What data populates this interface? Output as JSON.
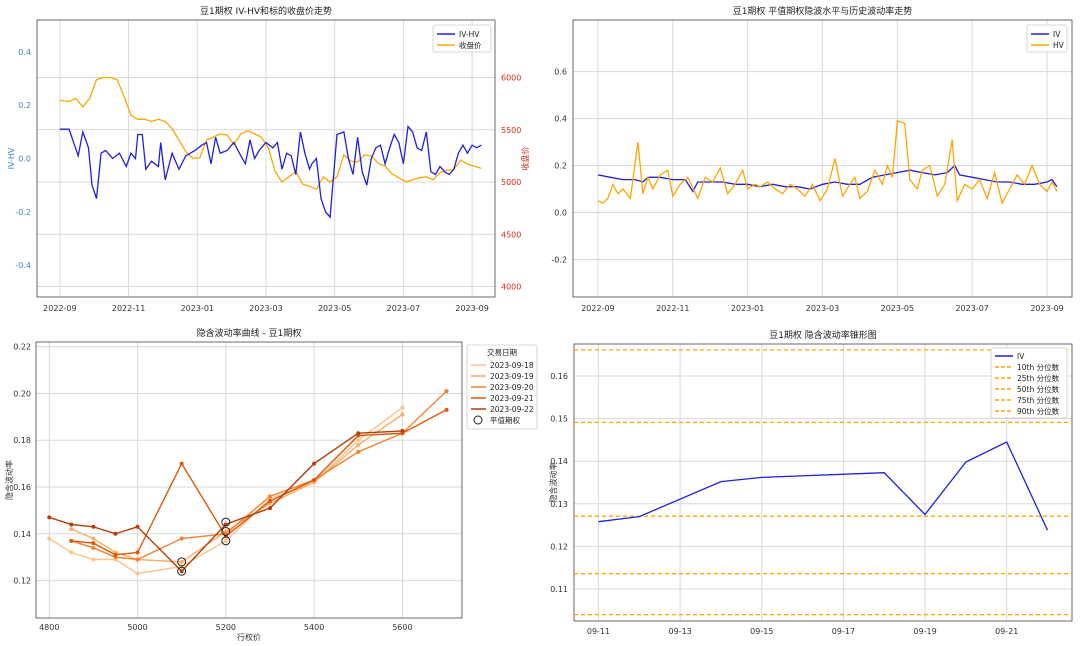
{
  "colors": {
    "blue": "#1f1fe0",
    "orange": "#ffa500",
    "axis_blue": "#3b86c6",
    "axis_red": "#e0291c",
    "smile": [
      "#fdc28a",
      "#fdab67",
      "#f87f2c",
      "#e0580a",
      "#b43f06"
    ]
  },
  "chart_data": [
    {
      "type": "line",
      "title": "豆1期权 IV-HV和标的收盘价走势",
      "xlabel": "",
      "ylabel": "IV-HV",
      "y2label": "收盘价",
      "xticks": [
        "2022-09",
        "2022-11",
        "2023-01",
        "2023-03",
        "2023-05",
        "2023-07",
        "2023-09"
      ],
      "xlim": [
        0,
        400
      ],
      "ylim": [
        -0.52,
        0.52
      ],
      "yticks": [
        "-0.4",
        "-0.2",
        "0.0",
        "0.2",
        "0.4"
      ],
      "y2lim": [
        3900,
        6550
      ],
      "y2ticks": [
        "4000",
        "4500",
        "5000",
        "5500",
        "6000"
      ],
      "legend": [
        "IV-HV",
        "收盘价"
      ],
      "series": [
        {
          "name": "IV-HV",
          "axis": "left",
          "x": [
            20,
            28,
            32,
            36,
            40,
            45,
            48,
            52,
            56,
            60,
            66,
            72,
            78,
            82,
            86,
            88,
            92,
            95,
            100,
            106,
            108,
            112,
            118,
            124,
            130,
            138,
            144,
            148,
            152,
            156,
            160,
            166,
            172,
            178,
            182,
            186,
            190,
            194,
            200,
            206,
            210,
            214,
            218,
            222,
            226,
            230,
            234,
            238,
            240,
            244,
            248,
            252,
            256,
            262,
            268,
            272,
            276,
            280,
            284,
            288,
            292,
            296,
            300,
            304,
            308,
            312,
            316,
            320,
            324,
            328,
            332,
            336,
            340,
            344,
            348,
            352,
            356,
            360,
            364,
            368,
            372,
            376,
            380,
            384,
            388
          ],
          "y": [
            0.11,
            0.11,
            0.06,
            0.01,
            0.1,
            0.04,
            -0.1,
            -0.15,
            0.02,
            0.03,
            0.0,
            0.02,
            -0.03,
            0.02,
            0.0,
            0.09,
            0.09,
            -0.04,
            -0.01,
            -0.03,
            0.06,
            -0.08,
            0.02,
            -0.04,
            0.01,
            0.03,
            0.05,
            0.06,
            -0.02,
            0.08,
            0.02,
            0.03,
            0.06,
            0.01,
            -0.02,
            0.07,
            0.0,
            0.03,
            0.06,
            0.04,
            0.06,
            -0.04,
            0.02,
            0.01,
            -0.06,
            0.1,
            0.02,
            -0.04,
            -0.02,
            0.0,
            -0.15,
            -0.2,
            -0.22,
            0.09,
            0.1,
            0.0,
            -0.06,
            0.08,
            -0.05,
            -0.1,
            0.0,
            0.04,
            0.05,
            -0.02,
            0.04,
            0.09,
            0.06,
            -0.02,
            0.12,
            0.1,
            0.04,
            0.03,
            0.1,
            -0.05,
            -0.06,
            -0.03,
            -0.05,
            -0.06,
            -0.04,
            0.02,
            0.05,
            0.02,
            0.05,
            0.04,
            0.05
          ]
        },
        {
          "name": "收盘价",
          "axis": "right",
          "x": [
            20,
            28,
            34,
            40,
            46,
            52,
            58,
            64,
            70,
            76,
            82,
            88,
            94,
            100,
            106,
            112,
            118,
            124,
            130,
            136,
            142,
            148,
            154,
            160,
            166,
            172,
            178,
            184,
            190,
            196,
            202,
            208,
            214,
            220,
            226,
            232,
            238,
            244,
            250,
            256,
            262,
            268,
            274,
            280,
            286,
            292,
            298,
            304,
            310,
            316,
            322,
            328,
            334,
            340,
            346,
            352,
            358,
            364,
            370,
            376,
            382,
            388
          ],
          "y": [
            5780,
            5770,
            5800,
            5720,
            5800,
            5980,
            6000,
            6000,
            5980,
            5820,
            5640,
            5600,
            5600,
            5580,
            5600,
            5580,
            5510,
            5400,
            5290,
            5230,
            5230,
            5400,
            5430,
            5460,
            5450,
            5360,
            5460,
            5490,
            5460,
            5430,
            5330,
            5100,
            5000,
            5050,
            5100,
            4980,
            4960,
            4930,
            5050,
            5000,
            5050,
            5260,
            5200,
            5190,
            5260,
            5250,
            5180,
            5150,
            5080,
            5040,
            5000,
            5020,
            5040,
            5050,
            5020,
            5090,
            5110,
            5120,
            5210,
            5170,
            5150,
            5130
          ]
        }
      ]
    },
    {
      "type": "line",
      "title": "豆1期权 平值期权隐波水平与历史波动率走势",
      "xlabel": "",
      "ylabel": "",
      "xticks": [
        "2022-09",
        "2022-11",
        "2023-01",
        "2023-03",
        "2023-05",
        "2023-07",
        "2023-09"
      ],
      "xlim": [
        0,
        400
      ],
      "ylim": [
        -0.36,
        0.82
      ],
      "yticks": [
        "-0.2",
        "0.0",
        "0.2",
        "0.4",
        "0.6"
      ],
      "legend": [
        "IV",
        "HV"
      ],
      "series": [
        {
          "name": "IV",
          "x": [
            20,
            30,
            40,
            50,
            56,
            60,
            70,
            80,
            90,
            96,
            100,
            110,
            120,
            130,
            140,
            150,
            160,
            170,
            180,
            190,
            200,
            210,
            220,
            230,
            240,
            250,
            260,
            270,
            280,
            290,
            300,
            306,
            310,
            320,
            330,
            340,
            350,
            360,
            370,
            380,
            384,
            388
          ],
          "y": [
            0.16,
            0.15,
            0.14,
            0.14,
            0.13,
            0.15,
            0.15,
            0.14,
            0.14,
            0.09,
            0.13,
            0.13,
            0.13,
            0.12,
            0.12,
            0.11,
            0.12,
            0.11,
            0.11,
            0.1,
            0.12,
            0.13,
            0.12,
            0.12,
            0.15,
            0.16,
            0.17,
            0.18,
            0.17,
            0.16,
            0.17,
            0.2,
            0.16,
            0.15,
            0.14,
            0.13,
            0.13,
            0.12,
            0.12,
            0.13,
            0.14,
            0.11
          ]
        },
        {
          "name": "HV",
          "x": [
            20,
            24,
            28,
            32,
            36,
            40,
            46,
            52,
            56,
            60,
            64,
            70,
            76,
            80,
            86,
            92,
            100,
            106,
            112,
            118,
            124,
            130,
            136,
            140,
            146,
            150,
            156,
            162,
            168,
            174,
            180,
            186,
            192,
            198,
            204,
            210,
            216,
            222,
            226,
            230,
            236,
            242,
            248,
            252,
            256,
            260,
            266,
            270,
            276,
            280,
            286,
            292,
            298,
            304,
            308,
            314,
            320,
            326,
            332,
            338,
            344,
            350,
            356,
            362,
            368,
            374,
            380,
            384,
            388
          ],
          "y": [
            0.05,
            0.04,
            0.06,
            0.12,
            0.08,
            0.1,
            0.06,
            0.3,
            0.08,
            0.15,
            0.1,
            0.16,
            0.18,
            0.07,
            0.12,
            0.15,
            0.06,
            0.15,
            0.13,
            0.19,
            0.08,
            0.12,
            0.18,
            0.1,
            0.12,
            0.11,
            0.13,
            0.1,
            0.08,
            0.12,
            0.1,
            0.07,
            0.12,
            0.05,
            0.1,
            0.23,
            0.07,
            0.12,
            0.15,
            0.06,
            0.09,
            0.18,
            0.12,
            0.2,
            0.15,
            0.39,
            0.38,
            0.14,
            0.1,
            0.18,
            0.2,
            0.07,
            0.12,
            0.31,
            0.05,
            0.12,
            0.1,
            0.14,
            0.06,
            0.17,
            0.04,
            0.1,
            0.16,
            0.12,
            0.2,
            0.12,
            0.09,
            0.13,
            0.09
          ]
        }
      ]
    },
    {
      "type": "line",
      "title": "隐含波动率曲线 - 豆1期权",
      "xlabel": "行权价",
      "ylabel": "隐含波动率",
      "xlim": [
        4770,
        5735
      ],
      "xticks": [
        "4800",
        "5000",
        "5200",
        "5400",
        "5600"
      ],
      "ylim": [
        0.104,
        0.222
      ],
      "yticks": [
        "0.12",
        "0.14",
        "0.16",
        "0.18",
        "0.20",
        "0.22"
      ],
      "legend_title": "交易日期",
      "legend": [
        "2023-09-18",
        "2023-09-19",
        "2023-09-20",
        "2023-09-21",
        "2023-09-22",
        "平值期权"
      ],
      "series": [
        {
          "name": "2023-09-18",
          "x": [
            4800,
            4850,
            4900,
            4950,
            5000,
            5100,
            5200,
            5300,
            5400,
            5500,
            5600
          ],
          "y": [
            0.138,
            0.132,
            0.129,
            0.129,
            0.123,
            0.126,
            0.137,
            0.155,
            0.162,
            0.18,
            0.194
          ]
        },
        {
          "name": "2023-09-19",
          "x": [
            4850,
            4900,
            4950,
            5000,
            5100,
            5200,
            5300,
            5400,
            5500,
            5600
          ],
          "y": [
            0.142,
            0.138,
            0.132,
            0.129,
            0.128,
            0.141,
            0.153,
            0.162,
            0.178,
            0.191
          ]
        },
        {
          "name": "2023-09-20",
          "x": [
            4850,
            4900,
            4950,
            5000,
            5100,
            5200,
            5300,
            5400,
            5500,
            5600,
            5700
          ],
          "y": [
            0.137,
            0.134,
            0.13,
            0.129,
            0.138,
            0.14,
            0.156,
            0.163,
            0.175,
            0.183,
            0.201
          ]
        },
        {
          "name": "2023-09-21",
          "x": [
            4850,
            4900,
            4950,
            5000,
            5100,
            5200,
            5300,
            5400,
            5500,
            5600,
            5700
          ],
          "y": [
            0.137,
            0.136,
            0.131,
            0.132,
            0.17,
            0.139,
            0.154,
            0.163,
            0.182,
            0.183,
            0.193
          ]
        },
        {
          "name": "2023-09-22",
          "x": [
            4800,
            4850,
            4900,
            4950,
            5000,
            5100,
            5200,
            5300,
            5400,
            5500,
            5600
          ],
          "y": [
            0.147,
            0.144,
            0.143,
            0.14,
            0.143,
            0.124,
            0.144,
            0.151,
            0.17,
            0.183,
            0.184
          ]
        }
      ],
      "atm": {
        "x": [
          5100,
          5100,
          5200,
          5200,
          5200
        ],
        "y": [
          0.128,
          0.124,
          0.137,
          0.141,
          0.145
        ]
      }
    },
    {
      "type": "line",
      "title": "豆1期权 隐含波动率锥形图",
      "xlabel": "",
      "ylabel": "隐含波动率",
      "xlim": [
        -0.6,
        11.6
      ],
      "xticks": [
        "09-11",
        "09-13",
        "09-15",
        "09-17",
        "09-19",
        "09-21"
      ],
      "ylim": [
        0.1025,
        0.1675
      ],
      "yticks": [
        "0.11",
        "0.12",
        "0.13",
        "0.14",
        "0.15",
        "0.16"
      ],
      "legend": [
        "IV",
        "10th 分位数",
        "25th 分位数",
        "50th 分位数",
        "75th 分位数",
        "90th 分位数"
      ],
      "series": [
        {
          "name": "IV",
          "x": [
            0,
            1,
            3,
            4,
            7,
            8,
            9,
            10,
            11
          ],
          "y": [
            0.1258,
            0.127,
            0.1352,
            0.1362,
            0.1373,
            0.1275,
            0.1398,
            0.1445,
            0.1238
          ]
        }
      ],
      "percentiles": [
        0.104,
        0.1136,
        0.1271,
        0.1491,
        0.1661
      ]
    }
  ]
}
